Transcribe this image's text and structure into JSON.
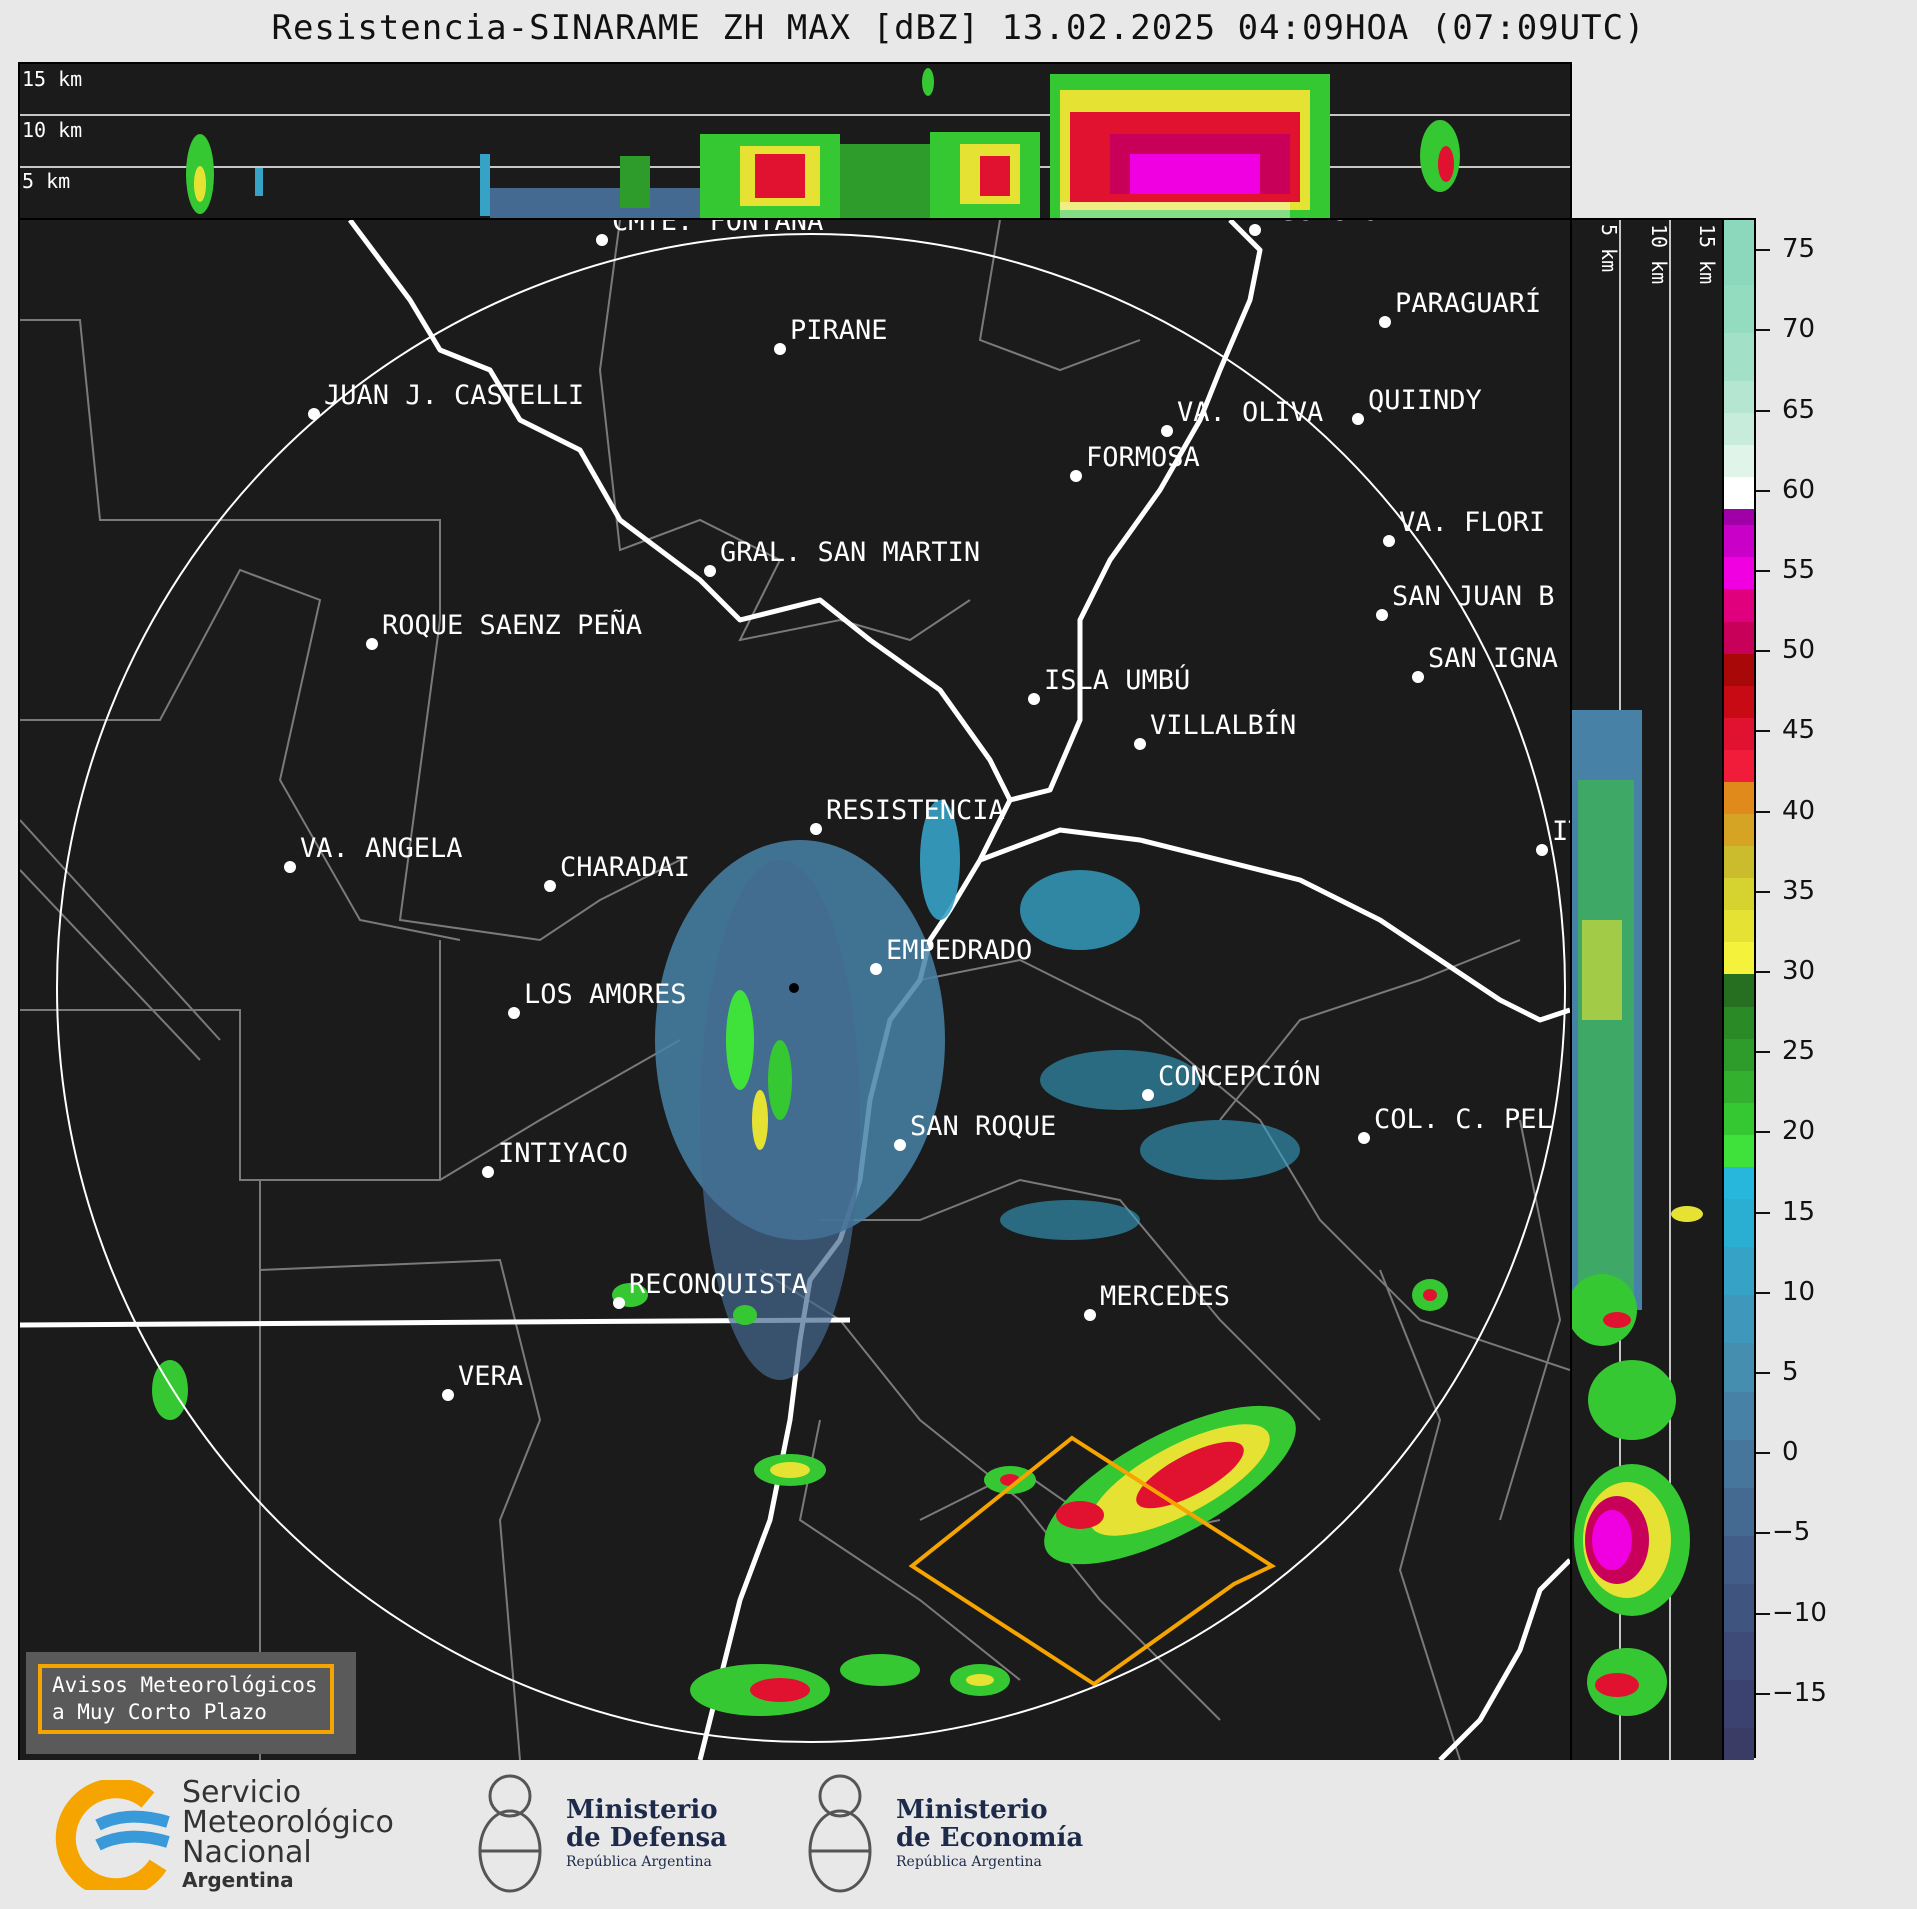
{
  "title": "Resistencia-SINARAME ZH MAX [dBZ] 13.02.2025 04:09HOA (07:09UTC)",
  "top_panel": {
    "altitude_labels": [
      "15 km",
      "10 km",
      "5 km"
    ]
  },
  "side_panel": {
    "altitude_labels": [
      "5 km",
      "10 km",
      "15 km"
    ]
  },
  "colorbar": {
    "tick_labels": [
      "75",
      "70",
      "65",
      "60",
      "55",
      "50",
      "45",
      "40",
      "35",
      "30",
      "25",
      "20",
      "15",
      "10",
      "5",
      "0",
      "−5",
      "−10",
      "−15"
    ],
    "tick_values": [
      75,
      70,
      65,
      60,
      55,
      50,
      45,
      40,
      35,
      30,
      25,
      20,
      15,
      10,
      5,
      0,
      -5,
      -10,
      -15
    ],
    "range": [
      -19,
      77
    ],
    "bands": [
      {
        "from": -19,
        "to": -17,
        "color": "#3a3c66"
      },
      {
        "from": -17,
        "to": -14,
        "color": "#3c4270"
      },
      {
        "from": -14,
        "to": -11,
        "color": "#3e4a78"
      },
      {
        "from": -11,
        "to": -8,
        "color": "#405480"
      },
      {
        "from": -8,
        "to": -5,
        "color": "#425e88"
      },
      {
        "from": -5,
        "to": -2,
        "color": "#446a92"
      },
      {
        "from": -2,
        "to": 1,
        "color": "#46769c"
      },
      {
        "from": 1,
        "to": 4,
        "color": "#4782a6"
      },
      {
        "from": 4,
        "to": 7,
        "color": "#468eb0"
      },
      {
        "from": 7,
        "to": 10,
        "color": "#3f98bc"
      },
      {
        "from": 10,
        "to": 13,
        "color": "#36a2c6"
      },
      {
        "from": 13,
        "to": 16,
        "color": "#2aaed2"
      },
      {
        "from": 16,
        "to": 18,
        "color": "#27b6dc"
      },
      {
        "from": 18,
        "to": 20,
        "color": "#3ee23a"
      },
      {
        "from": 20,
        "to": 22,
        "color": "#36c832"
      },
      {
        "from": 22,
        "to": 24,
        "color": "#32b02e"
      },
      {
        "from": 24,
        "to": 26,
        "color": "#2e9c2a"
      },
      {
        "from": 26,
        "to": 28,
        "color": "#2a8a26"
      },
      {
        "from": 28,
        "to": 30,
        "color": "#266e20"
      },
      {
        "from": 30,
        "to": 32,
        "color": "#f4f23a"
      },
      {
        "from": 32,
        "to": 34,
        "color": "#e6e234"
      },
      {
        "from": 34,
        "to": 36,
        "color": "#d6d230"
      },
      {
        "from": 36,
        "to": 38,
        "color": "#cabc2c"
      },
      {
        "from": 38,
        "to": 40,
        "color": "#d6a424"
      },
      {
        "from": 40,
        "to": 42,
        "color": "#e08a1c"
      },
      {
        "from": 42,
        "to": 44,
        "color": "#f01c3a"
      },
      {
        "from": 44,
        "to": 46,
        "color": "#e01230"
      },
      {
        "from": 46,
        "to": 48,
        "color": "#c80a14"
      },
      {
        "from": 48,
        "to": 50,
        "color": "#a80808"
      },
      {
        "from": 50,
        "to": 52,
        "color": "#c8005a"
      },
      {
        "from": 52,
        "to": 54,
        "color": "#e0007e"
      },
      {
        "from": 54,
        "to": 56,
        "color": "#f000e0"
      },
      {
        "from": 56,
        "to": 58,
        "color": "#c800c8"
      },
      {
        "from": 58,
        "to": 59,
        "color": "#a000a8"
      },
      {
        "from": 59,
        "to": 61,
        "color": "#ffffff"
      },
      {
        "from": 61,
        "to": 63,
        "color": "#e0f4ea"
      },
      {
        "from": 63,
        "to": 65,
        "color": "#c8ecdc"
      },
      {
        "from": 65,
        "to": 67,
        "color": "#b4e6d2"
      },
      {
        "from": 67,
        "to": 70,
        "color": "#a2e0c8"
      },
      {
        "from": 70,
        "to": 73,
        "color": "#94dcc0"
      },
      {
        "from": 73,
        "to": 77,
        "color": "#8cd8bc"
      }
    ]
  },
  "cities": [
    {
      "name": "CMTE. FONTANA"
    },
    {
      "name": "ASUNCIÓN"
    },
    {
      "name": "PARAGUARÍ"
    },
    {
      "name": "PIRANE"
    },
    {
      "name": "JUAN J. CASTELLI"
    },
    {
      "name": "VA. OLIVA"
    },
    {
      "name": "QUIINDY"
    },
    {
      "name": "FORMOSA"
    },
    {
      "name": "VA. FLORI"
    },
    {
      "name": "GRAL. SAN MARTIN"
    },
    {
      "name": "SAN JUAN B"
    },
    {
      "name": "ROQUE SAENZ PEÑA"
    },
    {
      "name": "SAN IGNA"
    },
    {
      "name": "ISLA UMBÚ"
    },
    {
      "name": "VILLALBÍN"
    },
    {
      "name": "RESISTENCIA"
    },
    {
      "name": "IT"
    },
    {
      "name": "VA. ANGELA"
    },
    {
      "name": "CHARADAI"
    },
    {
      "name": "EMPEDRADO"
    },
    {
      "name": "LOS AMORES"
    },
    {
      "name": "CONCEPCIÓN"
    },
    {
      "name": "COL. C. PEL"
    },
    {
      "name": "SAN ROQUE"
    },
    {
      "name": "INTIYACO"
    },
    {
      "name": "RECONQUISTA"
    },
    {
      "name": "MERCEDES"
    },
    {
      "name": "VERA"
    }
  ],
  "warning_box": {
    "line1": "Avisos Meteorológicos",
    "line2": "a Muy Corto Plazo"
  },
  "footer": {
    "smn": {
      "line1": "Servicio",
      "line2": "Meteorológico",
      "line3": "Nacional",
      "line4": "Argentina"
    },
    "defensa": {
      "line1": "Ministerio",
      "line2": "de Defensa",
      "line3": "República Argentina"
    },
    "economia": {
      "line1": "Ministerio",
      "line2": "de Economía",
      "line3": "República Argentina"
    }
  },
  "colors": {
    "panel_bg": "#1b1b1b",
    "warning_polygon": "#f5a400",
    "range_ring": "#ffffff",
    "borders": "#ffffff",
    "departments": "#7a7a7a"
  }
}
